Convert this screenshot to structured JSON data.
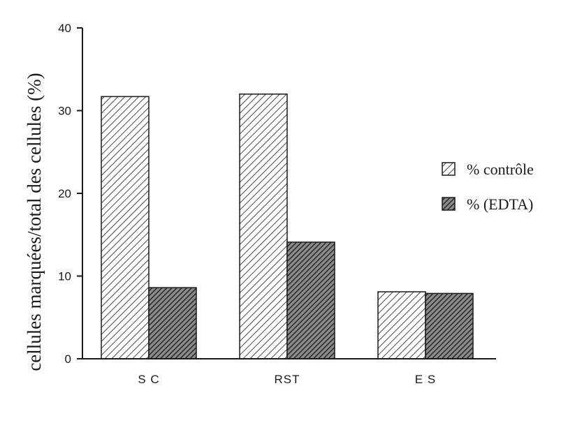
{
  "chart_data": {
    "type": "bar",
    "categories": [
      "S C",
      "RST",
      "E S"
    ],
    "series": [
      {
        "name": "% contrôle",
        "values": [
          31.7,
          32.0,
          8.1
        ],
        "pattern": "light-hatch"
      },
      {
        "name": "% (EDTA)",
        "values": [
          8.6,
          14.1,
          7.9
        ],
        "pattern": "dark-hatch"
      }
    ],
    "ylabel": "cellules marquées/total des cellules (%)",
    "xlabel": "",
    "ylim": [
      0,
      40
    ],
    "yticks": [
      "0",
      "10",
      "20",
      "30",
      "40"
    ],
    "legend_position": "right",
    "grid": false
  },
  "colors": {
    "axis": "#1a1a1a",
    "bar_stroke": "#1a1a1a",
    "light_fill": "#ffffff",
    "dark_fill": "#5a5a5a"
  }
}
